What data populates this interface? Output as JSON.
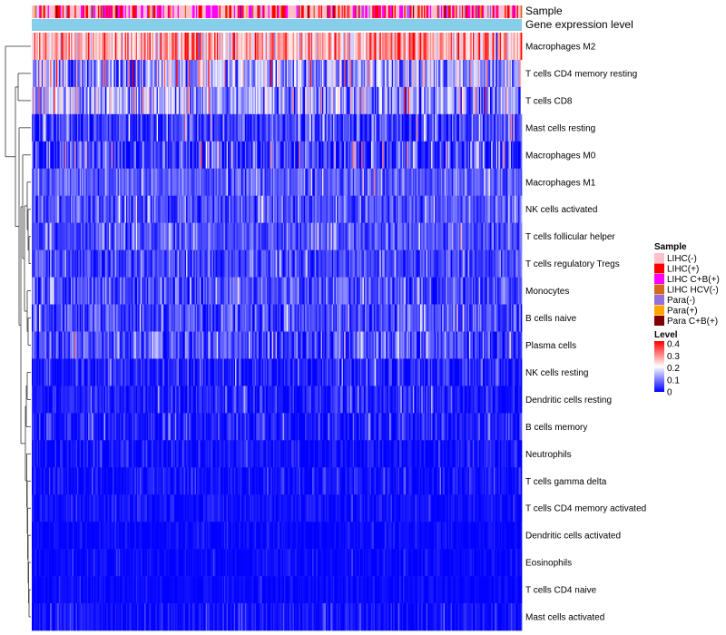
{
  "chart_data": {
    "type": "heatmap",
    "title": "",
    "annotation_rows": [
      "Sample",
      "Gene expression level"
    ],
    "rows": [
      {
        "label": "Macrophages M2",
        "mean": 0.26,
        "spread": 0.07
      },
      {
        "label": "T cells CD4 memory resting",
        "mean": 0.12,
        "spread": 0.08
      },
      {
        "label": "T cells CD8",
        "mean": 0.12,
        "spread": 0.07
      },
      {
        "label": "Mast cells resting",
        "mean": 0.05,
        "spread": 0.05
      },
      {
        "label": "Macrophages M0",
        "mean": 0.04,
        "spread": 0.06
      },
      {
        "label": "Macrophages M1",
        "mean": 0.07,
        "spread": 0.035
      },
      {
        "label": "NK cells activated",
        "mean": 0.06,
        "spread": 0.04
      },
      {
        "label": "T cells follicular helper",
        "mean": 0.06,
        "spread": 0.035
      },
      {
        "label": "T cells regulatory  Tregs",
        "mean": 0.05,
        "spread": 0.035
      },
      {
        "label": "Monocytes",
        "mean": 0.06,
        "spread": 0.04
      },
      {
        "label": "B cells naive",
        "mean": 0.05,
        "spread": 0.04
      },
      {
        "label": "Plasma cells",
        "mean": 0.06,
        "spread": 0.05
      },
      {
        "label": "NK cells resting",
        "mean": 0.02,
        "spread": 0.03
      },
      {
        "label": "Dendritic cells resting",
        "mean": 0.02,
        "spread": 0.03
      },
      {
        "label": "B cells memory",
        "mean": 0.02,
        "spread": 0.03
      },
      {
        "label": "Neutrophils",
        "mean": 0.01,
        "spread": 0.02
      },
      {
        "label": "T cells gamma delta",
        "mean": 0.01,
        "spread": 0.02
      },
      {
        "label": "T cells CD4 memory activated",
        "mean": 0.01,
        "spread": 0.015
      },
      {
        "label": "Dendritic cells activated",
        "mean": 0.005,
        "spread": 0.012
      },
      {
        "label": "Eosinophils",
        "mean": 0.005,
        "spread": 0.012
      },
      {
        "label": "T cells CD4 naive",
        "mean": 0.005,
        "spread": 0.01
      },
      {
        "label": "Mast cells activated",
        "mean": 0.01,
        "spread": 0.02
      }
    ],
    "n_samples": 400,
    "sample_legend": {
      "title": "Sample",
      "items": [
        {
          "label": "LIHC(-)",
          "color": "#ffc0cb"
        },
        {
          "label": "LIHC(+)",
          "color": "#ff0000"
        },
        {
          "label": "LIHC C+B(+)",
          "color": "#ff00ff"
        },
        {
          "label": "LIHC HCV(-)",
          "color": "#d2691e"
        },
        {
          "label": "Para(-)",
          "color": "#9370db"
        },
        {
          "label": "Para(+)",
          "color": "#ffa500"
        },
        {
          "label": "Para C+B(+)",
          "color": "#800000"
        }
      ]
    },
    "level_legend": {
      "title": "Level",
      "ticks": [
        "0.4",
        "0.3",
        "0.2",
        "0.1",
        "0"
      ],
      "range": [
        0,
        0.4
      ],
      "colors": {
        "low": "#0000ff",
        "mid": "#ffffff",
        "high": "#ff0000"
      }
    },
    "gene_expression_color": "#87ceeb"
  }
}
